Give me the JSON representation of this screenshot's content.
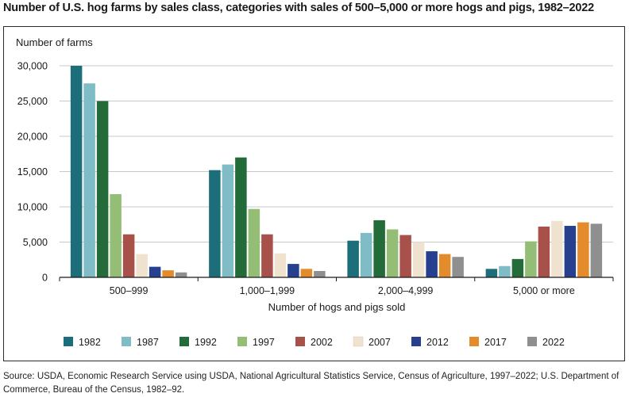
{
  "title": "Number of U.S. hog farms by sales class, categories with sales of 500–5,000 or more hogs and pigs, 1982–2022",
  "source": "Source: USDA, Economic Research Service using USDA, National Agricultural Statistics Service, Census of Agriculture, 1997–2022; U.S. Department of Commerce, Bureau of the Census, 1982–92.",
  "chart_data": {
    "type": "bar",
    "title": "Number of U.S. hog farms by sales class, categories with sales of 500–5,000 or more hogs and pigs, 1982–2022",
    "ylabel": "Number of farms",
    "xlabel": "Number of hogs and pigs sold",
    "ylim": [
      0,
      30000
    ],
    "yticks": [
      0,
      5000,
      10000,
      15000,
      20000,
      25000,
      30000
    ],
    "ytick_labels": [
      "0",
      "5,000",
      "10,000",
      "15,000",
      "20,000",
      "25,000",
      "30,000"
    ],
    "grid": true,
    "legend_position": "bottom",
    "categories": [
      "500–999",
      "1,000–1,999",
      "2,000–4,999",
      "5,000 or more"
    ],
    "series": [
      {
        "name": "1982",
        "color": "#1b6e7a",
        "values": [
          30000,
          15200,
          5200,
          1200
        ]
      },
      {
        "name": "1987",
        "color": "#7fbcc6",
        "values": [
          27500,
          16000,
          6300,
          1600
        ]
      },
      {
        "name": "1992",
        "color": "#236b39",
        "values": [
          25000,
          17000,
          8100,
          2600
        ]
      },
      {
        "name": "1997",
        "color": "#94bd76",
        "values": [
          11800,
          9700,
          6800,
          5100
        ]
      },
      {
        "name": "2002",
        "color": "#a8504a",
        "values": [
          6100,
          6100,
          6000,
          7200
        ]
      },
      {
        "name": "2007",
        "color": "#efe3cf",
        "values": [
          3300,
          3400,
          5000,
          8000
        ]
      },
      {
        "name": "2012",
        "color": "#26408f",
        "values": [
          1500,
          1900,
          3700,
          7300
        ]
      },
      {
        "name": "2017",
        "color": "#e48b2c",
        "values": [
          1000,
          1200,
          3300,
          7800
        ]
      },
      {
        "name": "2022",
        "color": "#8f8f8f",
        "values": [
          700,
          900,
          2900,
          7600
        ]
      }
    ]
  }
}
